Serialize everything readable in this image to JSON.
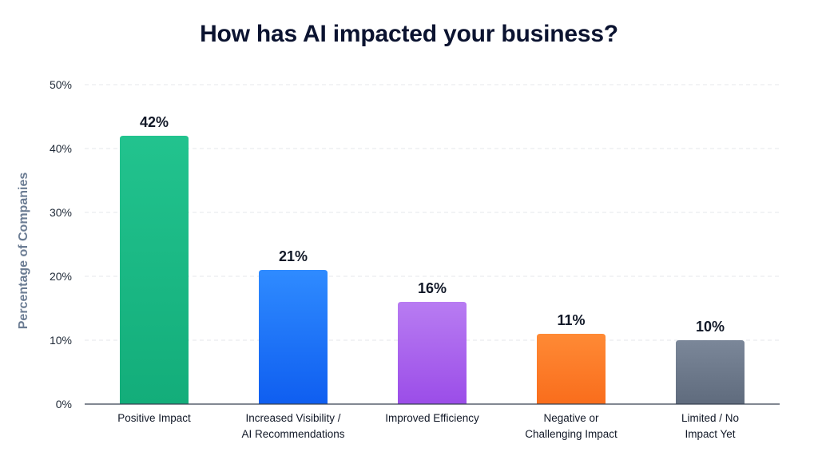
{
  "chart_data": {
    "type": "bar",
    "title": "How has AI impacted your business?",
    "ylabel": "Percentage of Companies",
    "xlabel": "",
    "ylim": [
      0,
      50
    ],
    "yticks": [
      "0%",
      "10%",
      "20%",
      "30%",
      "40%",
      "50%"
    ],
    "ytick_values": [
      0,
      10,
      20,
      30,
      40,
      50
    ],
    "grid": true,
    "categories": [
      [
        "Positive Impact"
      ],
      [
        "Increased Visibility /",
        "AI Recommendations"
      ],
      [
        "Improved Efficiency"
      ],
      [
        "Negative or",
        "Challenging Impact"
      ],
      [
        "Limited / No",
        "Impact Yet"
      ]
    ],
    "values": [
      42,
      21,
      16,
      11,
      10
    ],
    "data_labels": [
      "42%",
      "21%",
      "16%",
      "11%",
      "10%"
    ],
    "colors": [
      [
        "#22c38e",
        "#13ad7a"
      ],
      [
        "#2f8bff",
        "#0f5ef0"
      ],
      [
        "#b87cf2",
        "#9b4de8"
      ],
      [
        "#ff8a35",
        "#f96d1c"
      ],
      [
        "#7b8799",
        "#5f6b7d"
      ]
    ]
  }
}
